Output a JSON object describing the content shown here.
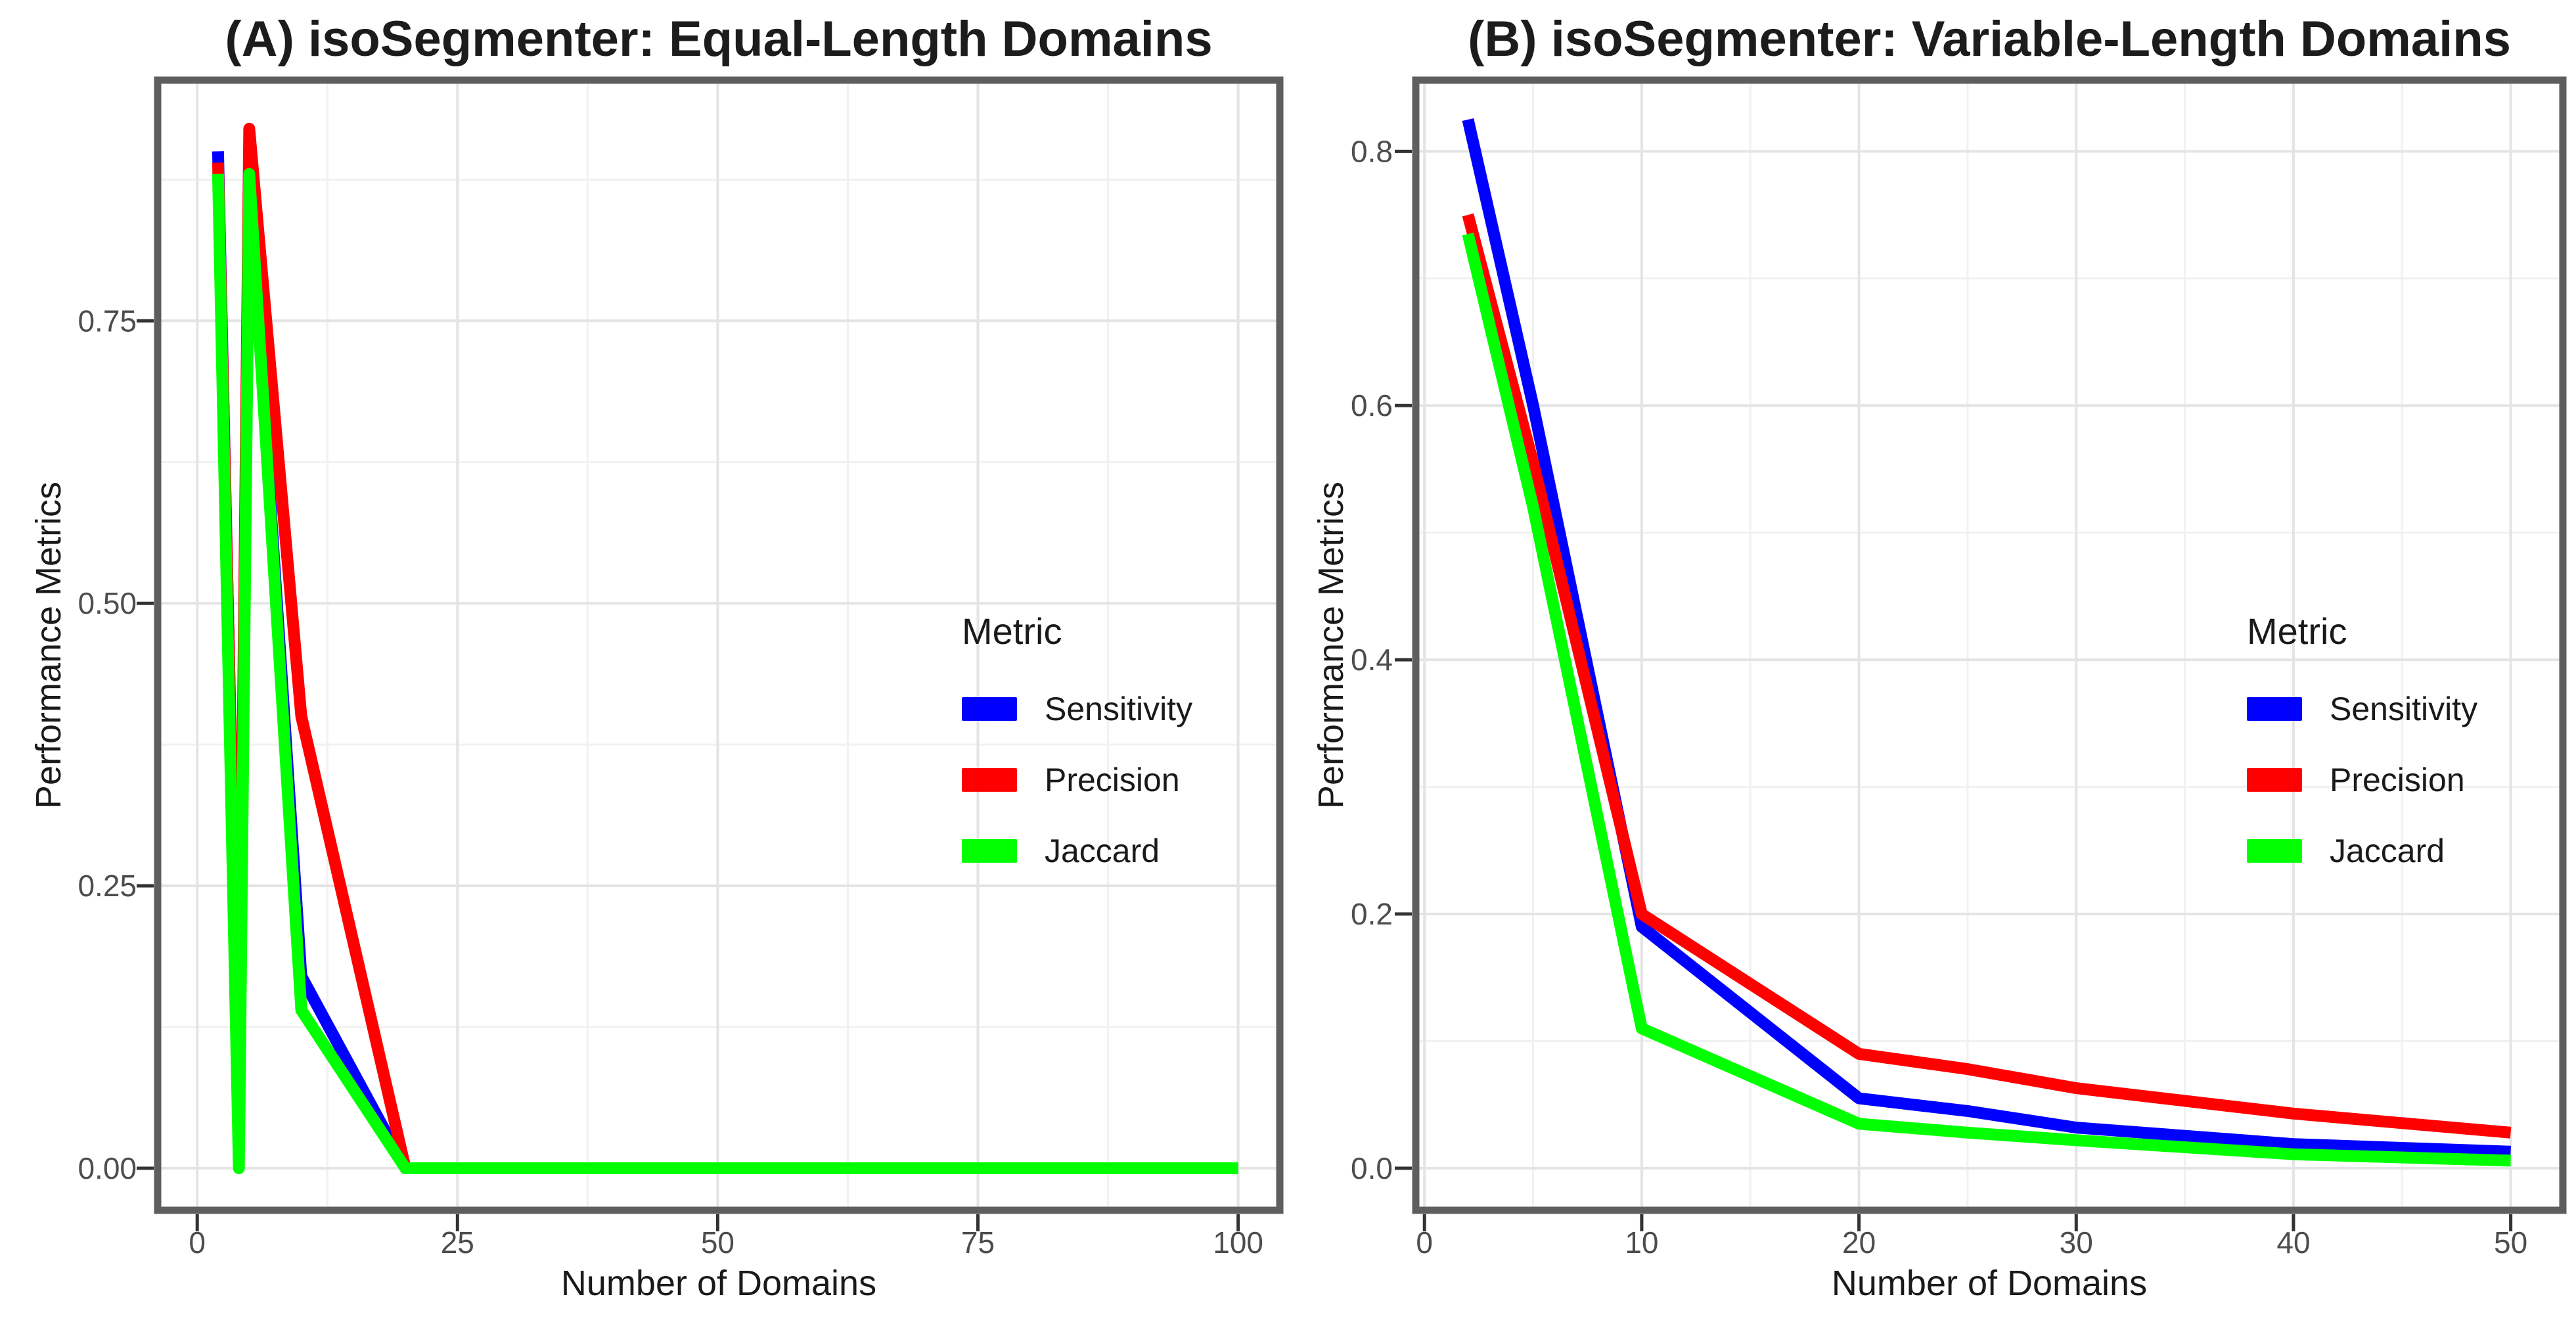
{
  "figure": {
    "background": "#ffffff",
    "text_color": "#1a1a1a",
    "tick_label_color": "#4d4d4d",
    "panel_border_color": "#5e5e5e",
    "grid_major_color": "#e4e4e4",
    "grid_minor_color": "#f1f1f1"
  },
  "chart_data": [
    {
      "type": "line",
      "title": "(A) isoSegmenter: Equal-Length Domains",
      "xlabel": "Number of Domains",
      "ylabel": "Performance Metrics",
      "legend_title": "Metric",
      "legend_position": "inside-right",
      "grid": true,
      "x": [
        2,
        4,
        5,
        10,
        20,
        25,
        50,
        75,
        100
      ],
      "series": [
        {
          "name": "Sensitivity",
          "color": "#0000FF",
          "values": [
            0.9,
            0.05,
            0.875,
            0.17,
            0,
            0,
            0,
            0,
            0
          ]
        },
        {
          "name": "Precision",
          "color": "#FF0000",
          "values": [
            0.89,
            0.06,
            0.92,
            0.4,
            0,
            0,
            0,
            0,
            0
          ]
        },
        {
          "name": "Jaccard",
          "color": "#00FF00",
          "values": [
            0.88,
            0.0,
            0.88,
            0.14,
            0,
            0,
            0,
            0,
            0
          ]
        }
      ],
      "xlim": [
        -3.8,
        104.0
      ],
      "ylim": [
        -0.0372,
        0.963
      ],
      "x_ticks": {
        "major": [
          0,
          25,
          50,
          75,
          100
        ],
        "labels": [
          "0",
          "25",
          "50",
          "75",
          "100"
        ],
        "minor": [
          12.5,
          37.5,
          62.5,
          87.5
        ]
      },
      "y_ticks": {
        "major": [
          0.0,
          0.25,
          0.5,
          0.75
        ],
        "labels": [
          "0.00",
          "0.25",
          "0.50",
          "0.75"
        ],
        "minor": [
          0.125,
          0.375,
          0.625,
          0.875
        ]
      }
    },
    {
      "type": "line",
      "title": "(B) isoSegmenter: Variable-Length Domains",
      "xlabel": "Number of Domains",
      "ylabel": "Performance Metrics",
      "legend_title": "Metric",
      "legend_position": "inside-right",
      "grid": true,
      "x": [
        2,
        5,
        10,
        20,
        25,
        30,
        40,
        50
      ],
      "series": [
        {
          "name": "Sensitivity",
          "color": "#0000FF",
          "values": [
            0.825,
            0.6,
            0.19,
            0.055,
            0.045,
            0.032,
            0.019,
            0.013
          ]
        },
        {
          "name": "Precision",
          "color": "#FF0000",
          "values": [
            0.75,
            0.555,
            0.2,
            0.09,
            0.078,
            0.063,
            0.043,
            0.028
          ]
        },
        {
          "name": "Jaccard",
          "color": "#00FF00",
          "values": [
            0.735,
            0.52,
            0.11,
            0.035,
            0.028,
            0.022,
            0.011,
            0.006
          ]
        }
      ],
      "xlim": [
        -0.4,
        52.4
      ],
      "ylim": [
        -0.0331,
        0.856
      ],
      "x_ticks": {
        "major": [
          0,
          10,
          20,
          30,
          40,
          50
        ],
        "labels": [
          "0",
          "10",
          "20",
          "30",
          "40",
          "50"
        ],
        "minor": [
          5,
          15,
          25,
          35,
          45
        ]
      },
      "y_ticks": {
        "major": [
          0.0,
          0.2,
          0.4,
          0.6,
          0.8
        ],
        "labels": [
          "0.0",
          "0.2",
          "0.4",
          "0.6",
          "0.8"
        ],
        "minor": [
          0.1,
          0.3,
          0.5,
          0.7
        ]
      }
    }
  ]
}
